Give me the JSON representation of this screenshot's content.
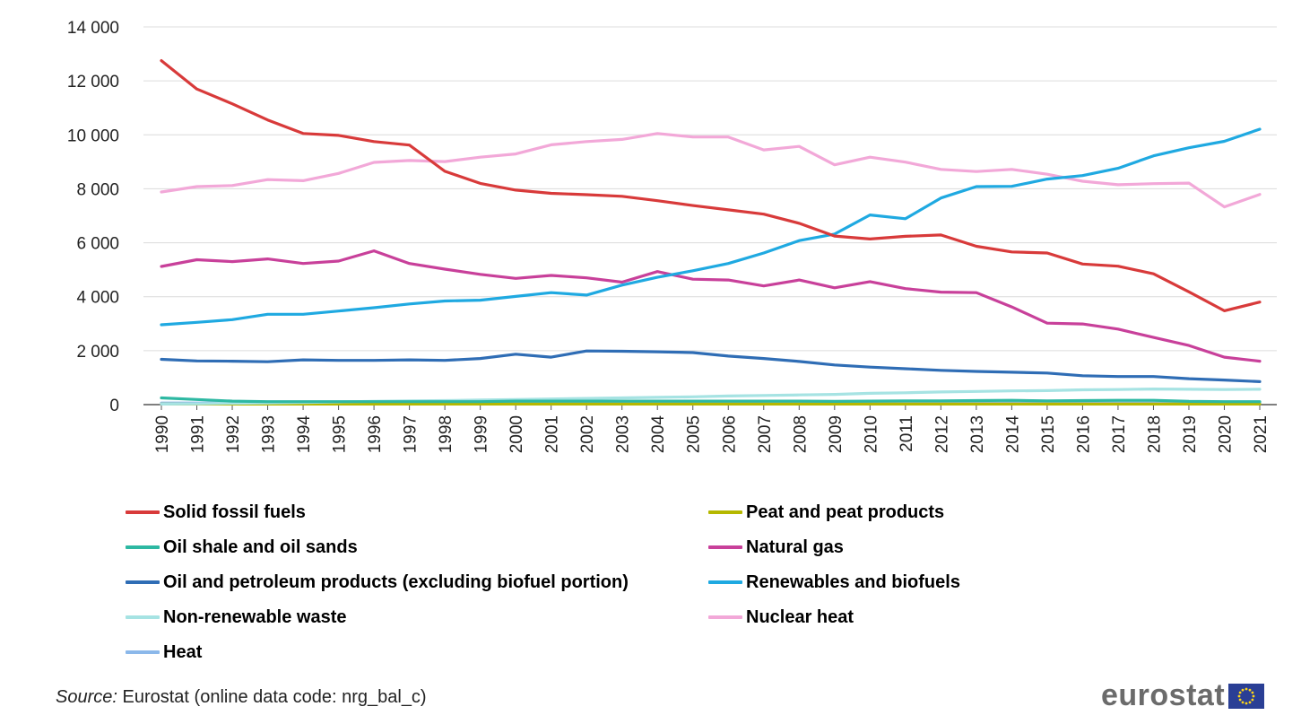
{
  "chart_data": {
    "type": "line",
    "title": "",
    "xlabel": "",
    "ylabel": "",
    "ylim": [
      0,
      14000
    ],
    "yticks": [
      0,
      2000,
      4000,
      6000,
      8000,
      10000,
      12000,
      14000
    ],
    "ytick_labels": [
      "0",
      "2 000",
      "4 000",
      "6 000",
      "8 000",
      "10 000",
      "12 000",
      "14 000"
    ],
    "grid": "horizontal",
    "legend_position": "bottom",
    "x": [
      "1990",
      "1991",
      "1992",
      "1993",
      "1994",
      "1995",
      "1996",
      "1997",
      "1998",
      "1999",
      "2000",
      "2001",
      "2002",
      "2003",
      "2004",
      "2005",
      "2006",
      "2007",
      "2008",
      "2009",
      "2010",
      "2011",
      "2012",
      "2013",
      "2014",
      "2015",
      "2016",
      "2017",
      "2018",
      "2019",
      "2020",
      "2021"
    ],
    "series": [
      {
        "name": "Solid fossil fuels",
        "color": "#d83a3a",
        "values": [
          12750,
          11700,
          11150,
          10550,
          10050,
          9980,
          9750,
          9620,
          8650,
          8200,
          7950,
          7830,
          7780,
          7720,
          7560,
          7380,
          7220,
          7060,
          6720,
          6250,
          6140,
          6240,
          6290,
          5870,
          5660,
          5620,
          5210,
          5130,
          4850,
          4180,
          3480,
          3800
        ]
      },
      {
        "name": "Peat and peat products",
        "color": "#b5b800",
        "values": [
          20,
          20,
          20,
          20,
          20,
          20,
          20,
          20,
          20,
          20,
          20,
          20,
          20,
          20,
          20,
          20,
          20,
          20,
          20,
          20,
          20,
          20,
          20,
          20,
          20,
          20,
          20,
          20,
          20,
          20,
          20,
          20
        ]
      },
      {
        "name": "Oil shale and oil sands",
        "color": "#2db8a2",
        "values": [
          250,
          190,
          130,
          110,
          110,
          110,
          110,
          110,
          110,
          110,
          130,
          130,
          130,
          130,
          130,
          130,
          130,
          130,
          130,
          120,
          130,
          140,
          140,
          150,
          160,
          140,
          150,
          160,
          160,
          120,
          110,
          110
        ]
      },
      {
        "name": "Natural gas",
        "color": "#c8409a",
        "values": [
          5120,
          5370,
          5300,
          5400,
          5230,
          5320,
          5700,
          5230,
          5020,
          4830,
          4680,
          4790,
          4700,
          4540,
          4930,
          4650,
          4620,
          4400,
          4620,
          4330,
          4560,
          4300,
          4170,
          4150,
          3620,
          3020,
          2990,
          2800,
          2490,
          2190,
          1760,
          1610
        ]
      },
      {
        "name": "Oil and petroleum products (excluding biofuel portion)",
        "color": "#2f6db5",
        "values": [
          1680,
          1620,
          1610,
          1590,
          1660,
          1640,
          1640,
          1660,
          1640,
          1710,
          1870,
          1760,
          1990,
          1980,
          1960,
          1930,
          1800,
          1710,
          1600,
          1470,
          1390,
          1330,
          1270,
          1230,
          1200,
          1170,
          1070,
          1040,
          1040,
          960,
          910,
          850
        ]
      },
      {
        "name": "Renewables and biofuels",
        "color": "#1fa9e1",
        "values": [
          2960,
          3050,
          3150,
          3350,
          3350,
          3470,
          3590,
          3730,
          3840,
          3870,
          4010,
          4150,
          4060,
          4430,
          4720,
          4960,
          5230,
          5620,
          6080,
          6320,
          7030,
          6890,
          7660,
          8080,
          8090,
          8360,
          8490,
          8760,
          9220,
          9520,
          9760,
          10210
        ]
      },
      {
        "name": "Non-renewable waste",
        "color": "#a6e3e3",
        "values": [
          20,
          30,
          50,
          60,
          80,
          100,
          120,
          140,
          150,
          170,
          190,
          210,
          230,
          250,
          270,
          290,
          320,
          340,
          360,
          380,
          420,
          440,
          470,
          490,
          510,
          520,
          550,
          560,
          580,
          570,
          560,
          570
        ]
      },
      {
        "name": "Nuclear heat",
        "color": "#f2a8d8",
        "values": [
          7880,
          8080,
          8120,
          8340,
          8300,
          8570,
          8980,
          9050,
          9010,
          9170,
          9290,
          9630,
          9750,
          9830,
          10050,
          9920,
          9920,
          9440,
          9570,
          8890,
          9170,
          8990,
          8720,
          8640,
          8720,
          8540,
          8280,
          8150,
          8190,
          8210,
          7330,
          7790
        ]
      },
      {
        "name": "Heat",
        "color": "#8bb8ea",
        "values": [
          60,
          60,
          60,
          60,
          60,
          60,
          60,
          60,
          60,
          60,
          60,
          60,
          60,
          60,
          60,
          60,
          60,
          60,
          60,
          60,
          60,
          60,
          60,
          60,
          60,
          60,
          60,
          60,
          60,
          60,
          60,
          60
        ]
      }
    ]
  },
  "legend": {
    "items": [
      {
        "label": "Solid fossil fuels",
        "color": "#d83a3a"
      },
      {
        "label": "Peat and peat products",
        "color": "#b5b800"
      },
      {
        "label": "Oil shale and oil sands",
        "color": "#2db8a2"
      },
      {
        "label": "Natural gas",
        "color": "#c8409a"
      },
      {
        "label": "Oil and petroleum products (excluding biofuel portion)",
        "color": "#2f6db5"
      },
      {
        "label": "Renewables and biofuels",
        "color": "#1fa9e1"
      },
      {
        "label": "Non-renewable waste",
        "color": "#a6e3e3"
      },
      {
        "label": "Nuclear heat",
        "color": "#f2a8d8"
      },
      {
        "label": "Heat",
        "color": "#8bb8ea"
      }
    ]
  },
  "footer": {
    "source_prefix": "Source:",
    "source_text": " Eurostat (online data code: nrg_bal_c)",
    "brand": "eurostat"
  }
}
